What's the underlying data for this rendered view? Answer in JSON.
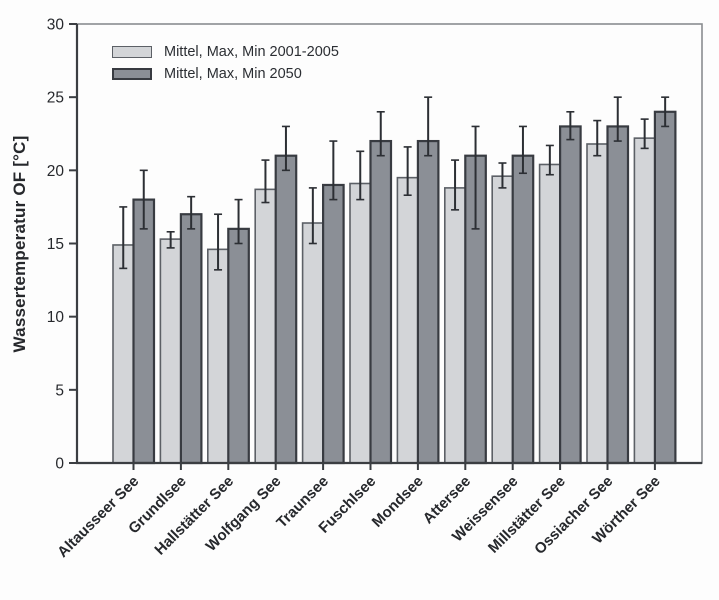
{
  "figure": {
    "y_axis_title": "Wassertemperatur OF [°C]",
    "legend": {
      "series1_label": "Mittel, Max, Min 2001-2005",
      "series2_label": "Mittel, Max, Min 2050"
    }
  },
  "colors": {
    "series1_fill": "#d3d5d8",
    "series1_stroke": "#5c6066",
    "series2_fill": "#8b8f96",
    "series2_stroke": "#383b41",
    "whisker": "#2c2f34",
    "axis": "#3b3e42",
    "frame": "#8a8d90",
    "text": "#26282c"
  },
  "chart_data": {
    "type": "bar",
    "title": "",
    "xlabel": "",
    "ylabel": "Wassertemperatur OF [°C]",
    "ylim": [
      0,
      30
    ],
    "yticks": [
      0,
      5,
      10,
      15,
      20,
      25,
      30
    ],
    "grid": false,
    "legend_position": "top-left",
    "error_bars": "min-max whiskers on each bar",
    "categories": [
      "Altausseer See",
      "Grundlsee",
      "Hallstätter See",
      "Wolfgang See",
      "Traunsee",
      "Fuschlsee",
      "Mondsee",
      "Attersee",
      "Weissensee",
      "Millstätter See",
      "Ossiacher See",
      "Wörther See"
    ],
    "series": [
      {
        "name": "Mittel, Max, Min 2001-2005",
        "mean": [
          14.9,
          15.3,
          14.6,
          18.7,
          16.4,
          19.1,
          19.5,
          18.8,
          19.6,
          20.4,
          21.8,
          22.2
        ],
        "min": [
          13.3,
          14.7,
          13.2,
          17.8,
          15.0,
          18.0,
          18.3,
          17.3,
          18.8,
          19.7,
          21.0,
          21.5
        ],
        "max": [
          17.5,
          15.8,
          17.0,
          20.7,
          18.8,
          21.3,
          21.6,
          20.7,
          20.5,
          21.7,
          23.4,
          23.5
        ]
      },
      {
        "name": "Mittel, Max, Min 2050",
        "mean": [
          18.0,
          17.0,
          16.0,
          21.0,
          19.0,
          22.0,
          22.0,
          21.0,
          21.0,
          23.0,
          23.0,
          24.0
        ],
        "min": [
          16.0,
          16.0,
          15.0,
          20.0,
          18.0,
          21.0,
          21.0,
          16.0,
          19.8,
          22.1,
          22.0,
          23.0
        ],
        "max": [
          20.0,
          18.2,
          18.0,
          23.0,
          22.0,
          24.0,
          25.0,
          23.0,
          23.0,
          24.0,
          25.0,
          25.0
        ]
      }
    ]
  }
}
